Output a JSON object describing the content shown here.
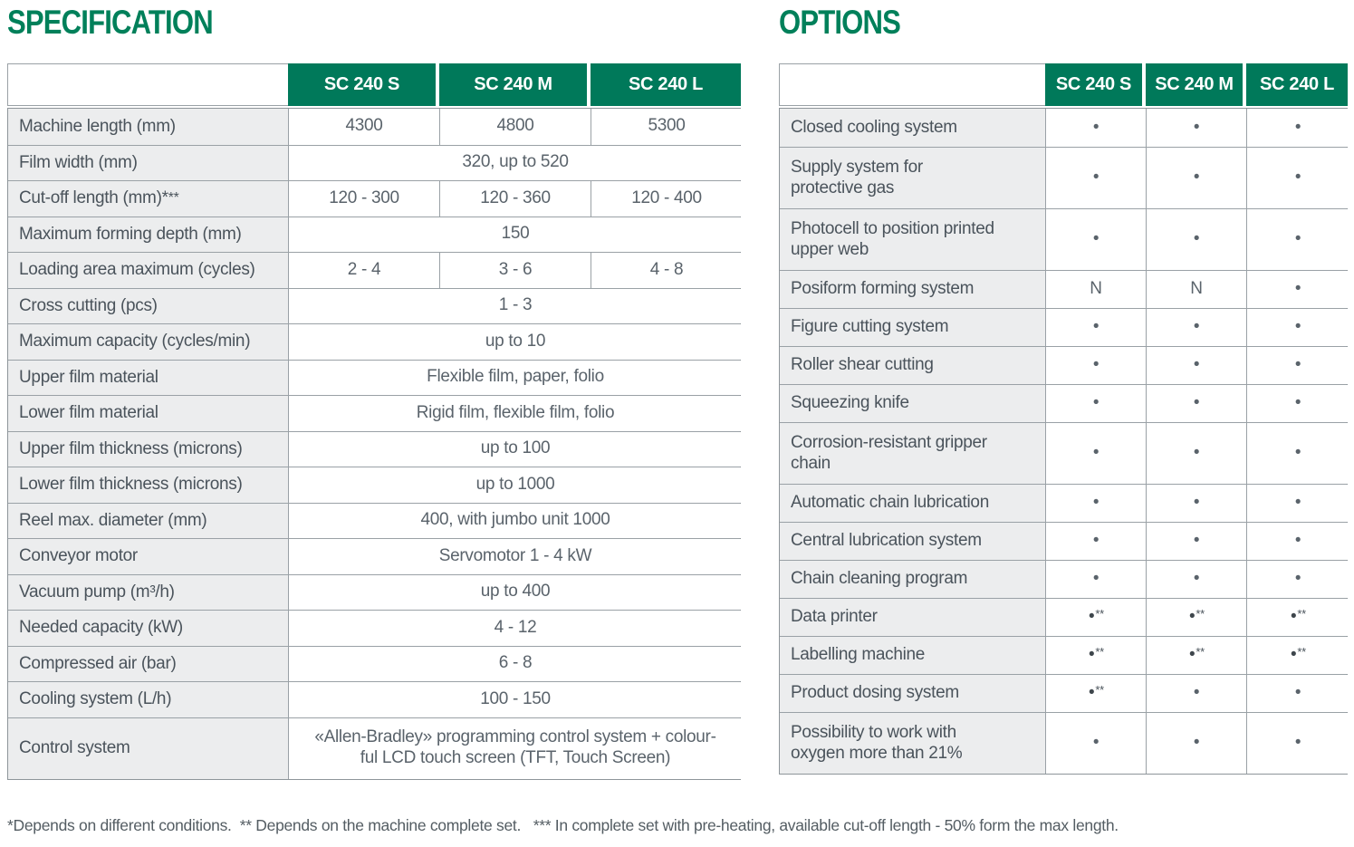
{
  "colors": {
    "accent_green": "#00795a",
    "title_green": "#00805a",
    "label_bg": "#ecedee",
    "border_gray": "#9aa1a6",
    "text_dark": "#4a535b",
    "text_value": "#5a636b"
  },
  "specification": {
    "title": "SPECIFICATION",
    "columns": [
      "SC 240 S",
      "SC 240 M",
      "SC 240 L"
    ],
    "rows": [
      {
        "label": "Machine length (mm)",
        "values": [
          "4300",
          "4800",
          "5300"
        ]
      },
      {
        "label": "Film width (mm)",
        "span": "320, up to 520"
      },
      {
        "label": "Cut-off length (mm)***",
        "values": [
          "120 - 300",
          "120 - 360",
          "120 - 400"
        ]
      },
      {
        "label": "Maximum forming depth (mm)",
        "span": "150"
      },
      {
        "label": "Loading area maximum (cycles)",
        "values": [
          "2 - 4",
          "3 - 6",
          "4 - 8"
        ]
      },
      {
        "label": "Cross cutting (pcs)",
        "span": "1 - 3"
      },
      {
        "label": "Maximum capacity (cycles/min)",
        "span": "up to 10"
      },
      {
        "label": "Upper film material",
        "span": "Flexible film, paper, folio"
      },
      {
        "label": "Lower film material",
        "span": "Rigid film, flexible film, folio"
      },
      {
        "label": "Upper film thickness (microns)",
        "span": "up to 100"
      },
      {
        "label": "Lower film  thickness (microns)",
        "span": "up to 1000"
      },
      {
        "label": "Reel max. diameter (mm)",
        "span": "400, with jumbo unit 1000"
      },
      {
        "label": "Conveyor motor",
        "span": "Servomotor 1 - 4 kW"
      },
      {
        "label": "Vacuum pump (m³/h)",
        "span": "up to 400"
      },
      {
        "label": "Needed capacity (kW)",
        "span": "4 - 12"
      },
      {
        "label": "Compressed air (bar)",
        "span": "6 - 8"
      },
      {
        "label": "Cooling system (L/h)",
        "span": "100 - 150"
      },
      {
        "label": "Control system",
        "span": [
          "«Allen-Bradley» programming control system + colour-",
          "ful LCD touch screen (TFT, Touch Screen)"
        ]
      }
    ]
  },
  "options": {
    "title": "OPTIONS",
    "columns": [
      "SC 240 S",
      "SC 240 M",
      "SC 240 L"
    ],
    "rows": [
      {
        "label": "Closed cooling system",
        "values": [
          "•",
          "•",
          "•"
        ]
      },
      {
        "label": [
          "Supply system for",
          "protective gas"
        ],
        "values": [
          "•",
          "•",
          "•"
        ]
      },
      {
        "label": [
          "Photocell to position printed",
          "upper web"
        ],
        "values": [
          "•",
          "•",
          "•"
        ]
      },
      {
        "label": "Posiform forming system",
        "values": [
          "N",
          "N",
          "•"
        ]
      },
      {
        "label": "Figure cutting system",
        "values": [
          "•",
          "•",
          "•"
        ]
      },
      {
        "label": "Roller shear cutting",
        "values": [
          "•",
          "•",
          "•"
        ]
      },
      {
        "label": "Squeezing knife",
        "values": [
          "•",
          "•",
          "•"
        ]
      },
      {
        "label": [
          "Corrosion-resistant gripper",
          "chain"
        ],
        "values": [
          "•",
          "•",
          "•"
        ]
      },
      {
        "label": "Automatic chain lubrication",
        "values": [
          "•",
          "•",
          "•"
        ]
      },
      {
        "label": "Central lubrication system",
        "values": [
          "•",
          "•",
          "•"
        ]
      },
      {
        "label": "Chain cleaning program",
        "values": [
          "•",
          "•",
          "•"
        ]
      },
      {
        "label": "Data printer",
        "values": [
          "•**",
          "•**",
          "•**"
        ]
      },
      {
        "label": "Labelling machine",
        "values": [
          "•**",
          "•**",
          "•**"
        ]
      },
      {
        "label": "Product dosing system",
        "values": [
          "•**",
          "•",
          "•"
        ]
      },
      {
        "label": [
          "Possibility to work with",
          "oxygen more than 21%"
        ],
        "values": [
          "•",
          "•",
          "•"
        ]
      }
    ]
  },
  "footnote": "*Depends on different conditions.  ** Depends on the machine complete set.   *** In complete set with pre-heating, available cut-off length - 50% form the max length."
}
